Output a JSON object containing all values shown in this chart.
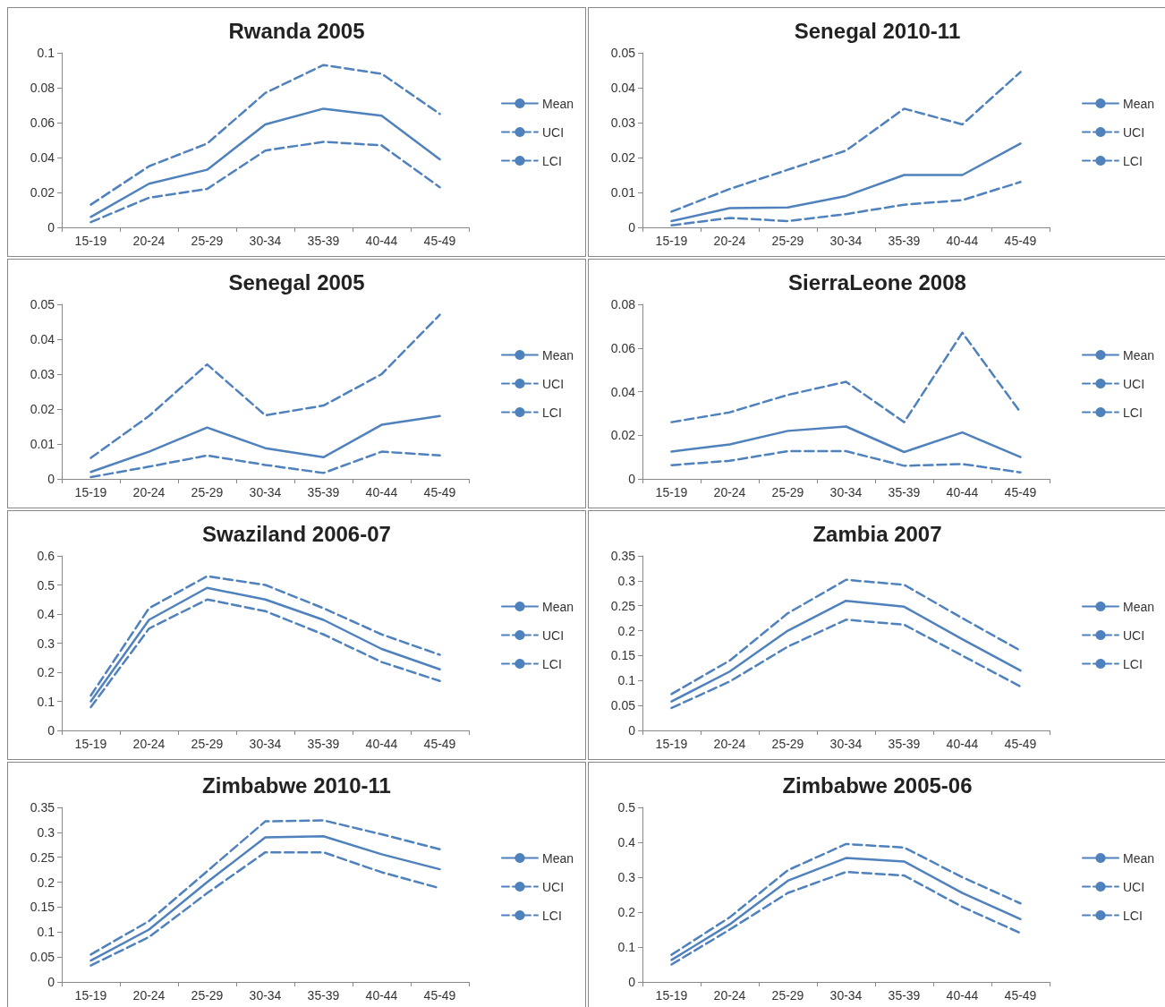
{
  "chart_data": [
    {
      "type": "line",
      "title": "Rwanda 2005",
      "categories": [
        "15-19",
        "20-24",
        "25-29",
        "30-34",
        "35-39",
        "40-44",
        "45-49"
      ],
      "ylim": [
        0,
        0.1
      ],
      "yticks": [
        0,
        0.02,
        0.04,
        0.06,
        0.08,
        0.1
      ],
      "grid": false,
      "legend": "right",
      "marker": "none",
      "series": [
        {
          "name": "Mean",
          "color": "#4f81bd",
          "line_style": "solid",
          "values": [
            0.006,
            0.025,
            0.033,
            0.059,
            0.068,
            0.064,
            0.039
          ]
        },
        {
          "name": "UCI",
          "color": "#4f81bd",
          "line_style": "dashed",
          "values": [
            0.013,
            0.035,
            0.048,
            0.077,
            0.093,
            0.088,
            0.065
          ]
        },
        {
          "name": "LCI",
          "color": "#4f81bd",
          "line_style": "dashed",
          "values": [
            0.003,
            0.017,
            0.022,
            0.044,
            0.049,
            0.047,
            0.023
          ]
        }
      ]
    },
    {
      "type": "line",
      "title": "Senegal 2010-11",
      "categories": [
        "15-19",
        "20-24",
        "25-29",
        "30-34",
        "35-39",
        "40-44",
        "45-49"
      ],
      "ylim": [
        0,
        0.05
      ],
      "yticks": [
        0,
        0.01,
        0.02,
        0.03,
        0.04,
        0.05
      ],
      "grid": false,
      "legend": "right",
      "marker": "none",
      "series": [
        {
          "name": "Mean",
          "color": "#4f81bd",
          "line_style": "solid",
          "values": [
            0.0018,
            0.0055,
            0.0057,
            0.009,
            0.015,
            0.015,
            0.024
          ]
        },
        {
          "name": "UCI",
          "color": "#4f81bd",
          "line_style": "dashed",
          "values": [
            0.0045,
            0.011,
            0.0165,
            0.022,
            0.034,
            0.0295,
            0.0445
          ]
        },
        {
          "name": "LCI",
          "color": "#4f81bd",
          "line_style": "dashed",
          "values": [
            0.0006,
            0.0027,
            0.0018,
            0.0038,
            0.0065,
            0.0078,
            0.013
          ]
        }
      ]
    },
    {
      "type": "line",
      "title": "Senegal 2005",
      "categories": [
        "15-19",
        "20-24",
        "25-29",
        "30-34",
        "35-39",
        "40-44",
        "45-49"
      ],
      "ylim": [
        0,
        0.05
      ],
      "yticks": [
        0,
        0.01,
        0.02,
        0.03,
        0.04,
        0.05
      ],
      "grid": false,
      "legend": "right",
      "marker": "none",
      "series": [
        {
          "name": "Mean",
          "color": "#4f81bd",
          "line_style": "solid",
          "values": [
            0.002,
            0.0078,
            0.0147,
            0.0088,
            0.0062,
            0.0155,
            0.018
          ]
        },
        {
          "name": "UCI",
          "color": "#4f81bd",
          "line_style": "dashed",
          "values": [
            0.006,
            0.018,
            0.0328,
            0.0182,
            0.021,
            0.03,
            0.047
          ]
        },
        {
          "name": "LCI",
          "color": "#4f81bd",
          "line_style": "dashed",
          "values": [
            0.0005,
            0.0035,
            0.0067,
            0.004,
            0.0017,
            0.0078,
            0.0067
          ]
        }
      ]
    },
    {
      "type": "line",
      "title": "SierraLeone 2008",
      "categories": [
        "15-19",
        "20-24",
        "25-29",
        "30-34",
        "35-39",
        "40-44",
        "45-49"
      ],
      "ylim": [
        0,
        0.08
      ],
      "yticks": [
        0,
        0.02,
        0.04,
        0.06,
        0.08
      ],
      "grid": false,
      "legend": "right",
      "marker": "none",
      "series": [
        {
          "name": "Mean",
          "color": "#4f81bd",
          "line_style": "solid",
          "values": [
            0.0125,
            0.0158,
            0.022,
            0.024,
            0.0123,
            0.0213,
            0.01
          ]
        },
        {
          "name": "UCI",
          "color": "#4f81bd",
          "line_style": "dashed",
          "values": [
            0.026,
            0.0305,
            0.0385,
            0.0445,
            0.026,
            0.067,
            0.0305
          ]
        },
        {
          "name": "LCI",
          "color": "#4f81bd",
          "line_style": "dashed",
          "values": [
            0.0063,
            0.0083,
            0.0127,
            0.0127,
            0.006,
            0.0068,
            0.003
          ]
        }
      ]
    },
    {
      "type": "line",
      "title": "Swaziland 2006-07",
      "categories": [
        "15-19",
        "20-24",
        "25-29",
        "30-34",
        "35-39",
        "40-44",
        "45-49"
      ],
      "ylim": [
        0,
        0.6
      ],
      "yticks": [
        0,
        0.1,
        0.2,
        0.3,
        0.4,
        0.5,
        0.6
      ],
      "grid": false,
      "legend": "right",
      "marker": "none",
      "series": [
        {
          "name": "Mean",
          "color": "#4f81bd",
          "line_style": "solid",
          "values": [
            0.1,
            0.38,
            0.49,
            0.45,
            0.38,
            0.28,
            0.21
          ]
        },
        {
          "name": "UCI",
          "color": "#4f81bd",
          "line_style": "dashed",
          "values": [
            0.12,
            0.42,
            0.53,
            0.5,
            0.42,
            0.33,
            0.26
          ]
        },
        {
          "name": "LCI",
          "color": "#4f81bd",
          "line_style": "dashed",
          "values": [
            0.08,
            0.35,
            0.45,
            0.41,
            0.33,
            0.235,
            0.17
          ]
        }
      ]
    },
    {
      "type": "line",
      "title": "Zambia 2007",
      "categories": [
        "15-19",
        "20-24",
        "25-29",
        "30-34",
        "35-39",
        "40-44",
        "45-49"
      ],
      "ylim": [
        0,
        0.35
      ],
      "yticks": [
        0,
        0.05,
        0.1,
        0.15,
        0.2,
        0.25,
        0.3,
        0.35
      ],
      "grid": false,
      "legend": "right",
      "marker": "none",
      "series": [
        {
          "name": "Mean",
          "color": "#4f81bd",
          "line_style": "solid",
          "values": [
            0.058,
            0.118,
            0.2,
            0.26,
            0.248,
            0.183,
            0.12
          ]
        },
        {
          "name": "UCI",
          "color": "#4f81bd",
          "line_style": "dashed",
          "values": [
            0.073,
            0.14,
            0.235,
            0.302,
            0.292,
            0.225,
            0.16
          ]
        },
        {
          "name": "LCI",
          "color": "#4f81bd",
          "line_style": "dashed",
          "values": [
            0.045,
            0.098,
            0.168,
            0.222,
            0.212,
            0.15,
            0.088
          ]
        }
      ]
    },
    {
      "type": "line",
      "title": "Zimbabwe 2010-11",
      "categories": [
        "15-19",
        "20-24",
        "25-29",
        "30-34",
        "35-39",
        "40-44",
        "45-49"
      ],
      "ylim": [
        0,
        0.35
      ],
      "yticks": [
        0,
        0.05,
        0.1,
        0.15,
        0.2,
        0.25,
        0.3,
        0.35
      ],
      "grid": false,
      "legend": "right",
      "marker": "none",
      "series": [
        {
          "name": "Mean",
          "color": "#4f81bd",
          "line_style": "solid",
          "values": [
            0.043,
            0.105,
            0.2,
            0.29,
            0.292,
            0.256,
            0.226
          ]
        },
        {
          "name": "UCI",
          "color": "#4f81bd",
          "line_style": "dashed",
          "values": [
            0.055,
            0.122,
            0.222,
            0.322,
            0.324,
            0.296,
            0.266
          ]
        },
        {
          "name": "LCI",
          "color": "#4f81bd",
          "line_style": "dashed",
          "values": [
            0.033,
            0.09,
            0.178,
            0.26,
            0.26,
            0.22,
            0.188
          ]
        }
      ]
    },
    {
      "type": "line",
      "title": "Zimbabwe 2005-06",
      "categories": [
        "15-19",
        "20-24",
        "25-29",
        "30-34",
        "35-39",
        "40-44",
        "45-49"
      ],
      "ylim": [
        0,
        0.5
      ],
      "yticks": [
        0,
        0.1,
        0.2,
        0.3,
        0.4,
        0.5
      ],
      "grid": false,
      "legend": "right",
      "marker": "none",
      "series": [
        {
          "name": "Mean",
          "color": "#4f81bd",
          "line_style": "solid",
          "values": [
            0.063,
            0.165,
            0.29,
            0.355,
            0.345,
            0.255,
            0.18
          ]
        },
        {
          "name": "UCI",
          "color": "#4f81bd",
          "line_style": "dashed",
          "values": [
            0.078,
            0.185,
            0.32,
            0.395,
            0.385,
            0.3,
            0.225
          ]
        },
        {
          "name": "LCI",
          "color": "#4f81bd",
          "line_style": "dashed",
          "values": [
            0.05,
            0.15,
            0.255,
            0.315,
            0.305,
            0.215,
            0.14
          ]
        }
      ]
    }
  ]
}
